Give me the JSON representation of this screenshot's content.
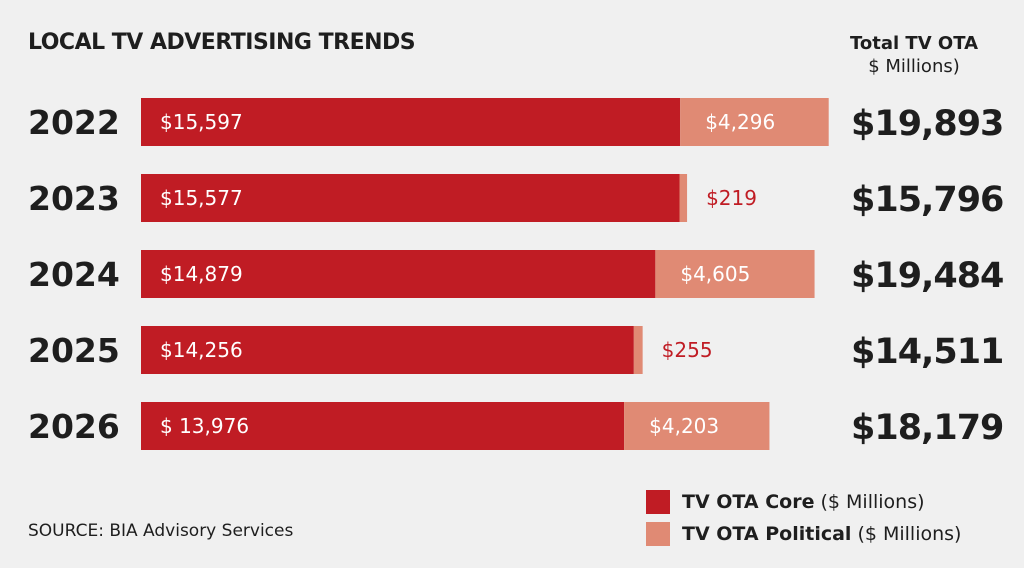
{
  "chart_data": {
    "type": "bar",
    "orientation": "horizontal",
    "stacked": true,
    "title": "LOCAL TV ADVERTISING TRENDS",
    "total_header": [
      "Total TV OTA",
      "$ Millions)"
    ],
    "categories": [
      "2022",
      "2023",
      "2024",
      "2025",
      "2026"
    ],
    "series": [
      {
        "name": "TV OTA Core",
        "unit": "($ Millions)",
        "color": "#c01c24",
        "values": [
          15597,
          15577,
          14879,
          14256,
          13976
        ],
        "labels": [
          "$15,597",
          "$15,577",
          "$14,879",
          "$14,256",
          "$ 13,976"
        ]
      },
      {
        "name": "TV OTA Political",
        "unit": "($ Millions)",
        "color": "#e08a74",
        "values": [
          4296,
          219,
          4605,
          255,
          4203
        ],
        "labels": [
          "$4,296",
          "$219",
          "$4,605",
          "$255",
          "$4,203"
        ]
      }
    ],
    "totals": [
      19893,
      15796,
      19484,
      14511,
      18179
    ],
    "total_labels": [
      "$19,893",
      "$15,796",
      "$19,484",
      "$14,511",
      "$18,179"
    ],
    "legend_position": "bottom-right",
    "grid": false,
    "source": "SOURCE: BIA Advisory Services"
  }
}
